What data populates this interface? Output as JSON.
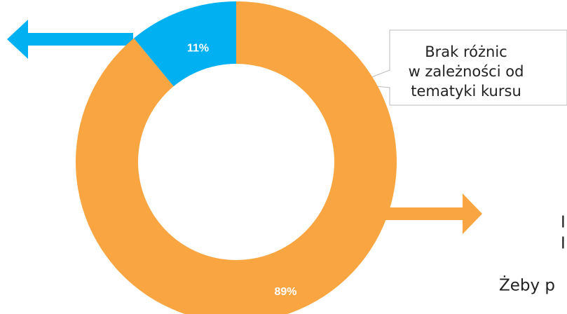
{
  "chart_data": {
    "type": "donut",
    "values": [
      89,
      11
    ],
    "value_labels": [
      "89%",
      "11%"
    ],
    "colors": [
      "#f9a541",
      "#00b0f0"
    ],
    "callout": [
      "Brak różnic",
      "w zależności od",
      "tematyki kursu"
    ],
    "side_texts": [
      "I",
      "I",
      "Żeby p"
    ]
  }
}
